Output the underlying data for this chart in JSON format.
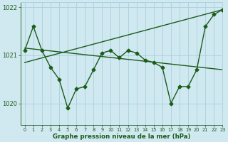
{
  "xlabel": "Graphe pression niveau de la mer (hPa)",
  "xlim": [
    -0.5,
    23
  ],
  "ylim": [
    1019.55,
    1022.1
  ],
  "yticks": [
    1020,
    1021,
    1022
  ],
  "xticks": [
    0,
    1,
    2,
    3,
    4,
    5,
    6,
    7,
    8,
    9,
    10,
    11,
    12,
    13,
    14,
    15,
    16,
    17,
    18,
    19,
    20,
    21,
    22,
    23
  ],
  "bg_color": "#d0e8f0",
  "grid_color": "#aacfdf",
  "line_color": "#1a5c1a",
  "font_color": "#1a5c1a",
  "series_main": {
    "x": [
      0,
      1,
      2,
      3,
      4,
      5,
      6,
      7,
      8,
      9,
      10,
      11,
      12,
      13,
      14,
      15,
      16,
      17,
      18,
      19,
      20,
      21,
      22,
      23
    ],
    "y": [
      1021.1,
      1021.6,
      1021.1,
      1020.75,
      1020.5,
      1019.9,
      1020.3,
      1020.35,
      1020.7,
      1021.05,
      1021.1,
      1020.95,
      1021.1,
      1021.05,
      1020.9,
      1020.85,
      1020.75,
      1020.0,
      1020.35,
      1020.35,
      1020.7,
      1021.6,
      1021.85,
      1021.95
    ],
    "marker": "D",
    "markersize": 2.5,
    "linewidth": 1.0
  },
  "series_rising": {
    "x": [
      0,
      23
    ],
    "y": [
      1020.85,
      1021.95
    ],
    "linewidth": 1.0
  },
  "series_falling": {
    "x": [
      0,
      23
    ],
    "y": [
      1021.15,
      1020.7
    ],
    "linewidth": 1.0
  }
}
